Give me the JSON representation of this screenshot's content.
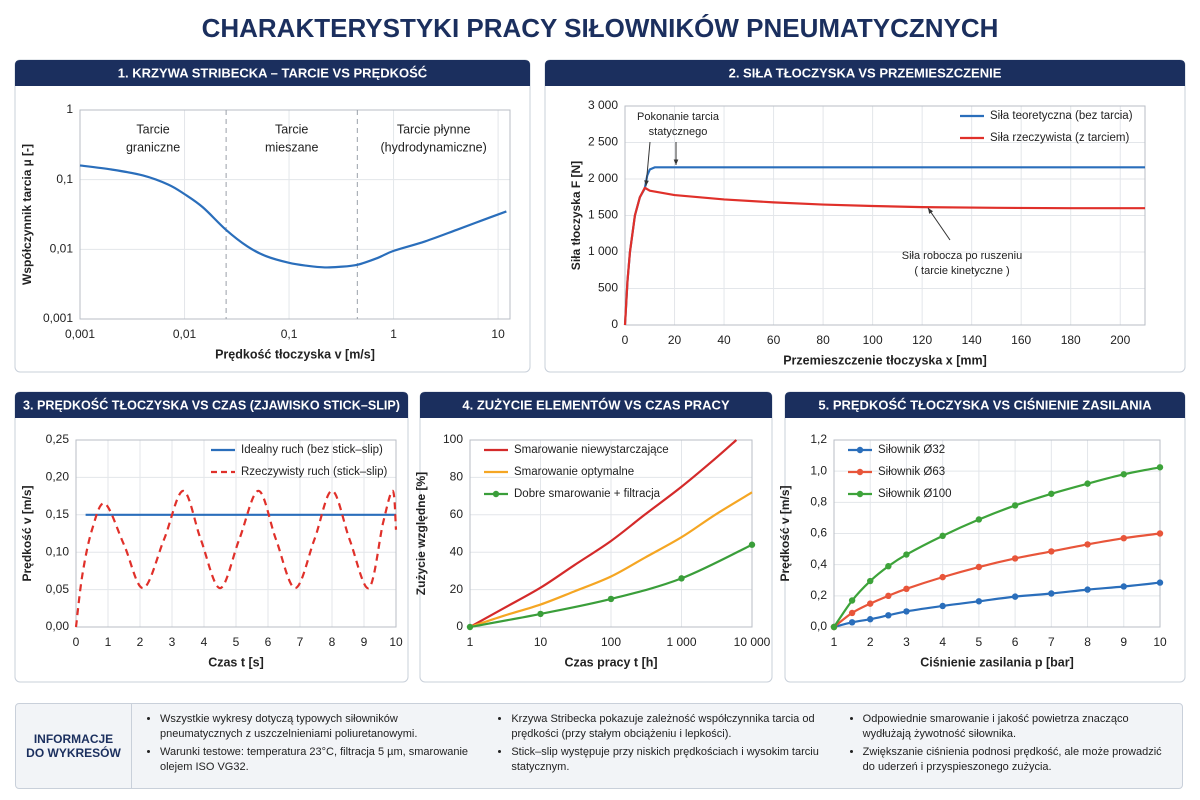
{
  "title": "CHARAKTERYSTYKI PRACY SIŁOWNIKÓW PNEUMATYCZNYCH",
  "chart_data": [
    {
      "type": "line",
      "title": "1. KRZYWA STRIBECKA – TARCIE VS PRĘDKOŚĆ",
      "x_label": "Prędkość tłoczyska v [m/s]",
      "y_label": "Współczynnik tarcia µ [-]",
      "xscale": "log",
      "yscale": "log",
      "grid": true,
      "smooth": true,
      "xlim": [
        0.001,
        13
      ],
      "ylim": [
        0.001,
        1
      ],
      "xticks": [
        {
          "value": 0.001,
          "label": "0,001"
        },
        {
          "value": 0.01,
          "label": "0,01"
        },
        {
          "value": 0.1,
          "label": "0,1"
        },
        1,
        10
      ],
      "yticks": [
        {
          "value": 0.001,
          "label": "0,001"
        },
        {
          "value": 0.01,
          "label": "0,01"
        },
        {
          "value": 0.1,
          "label": "0,1"
        },
        1
      ],
      "dividers": [
        0.025,
        0.45
      ],
      "regions": [
        {
          "lines": [
            "Tarcie",
            "graniczne"
          ]
        },
        {
          "lines": [
            "Tarcie",
            "mieszane"
          ]
        },
        {
          "lines": [
            "Tarcie płynne",
            "(hydrodynamiczne)"
          ]
        }
      ],
      "x": [
        0.001,
        0.002,
        0.004,
        0.007,
        0.01,
        0.015,
        0.025,
        0.04,
        0.06,
        0.1,
        0.15,
        0.22,
        0.3,
        0.45,
        0.7,
        1,
        2,
        4,
        7,
        12
      ],
      "series": [
        {
          "color": "#2a6ebb",
          "values": [
            0.16,
            0.14,
            0.115,
            0.085,
            0.062,
            0.04,
            0.019,
            0.011,
            0.008,
            0.0064,
            0.0058,
            0.0055,
            0.0056,
            0.006,
            0.0075,
            0.0095,
            0.013,
            0.019,
            0.026,
            0.035
          ]
        }
      ]
    },
    {
      "type": "line",
      "title": "2. SIŁA TŁOCZYSKA VS PRZEMIESZCZENIE",
      "x_label": "Przemieszczenie tłoczyska x [mm]",
      "y_label": "Siła tłoczyska F [N]",
      "grid": true,
      "legend": "upper right",
      "xlim": [
        0,
        210
      ],
      "ylim": [
        0,
        3000
      ],
      "xticks": [
        0,
        20,
        40,
        60,
        80,
        100,
        120,
        140,
        160,
        180,
        200
      ],
      "yticks": [
        0,
        500,
        {
          "value": 1000,
          "label": "1 000"
        },
        {
          "value": 1500,
          "label": "1 500"
        },
        {
          "value": 2000,
          "label": "2 000"
        },
        {
          "value": 2500,
          "label": "2 500"
        },
        {
          "value": 3000,
          "label": "3 000"
        }
      ],
      "annotations": [
        {
          "lines": [
            "Pokonanie tarcia",
            "statycznego"
          ]
        },
        {
          "lines": [
            "Siła robocza po ruszeniu",
            "( tarcie kinetyczne )"
          ]
        }
      ],
      "series": [
        {
          "name": "Siła teoretyczna (bez tarcia)",
          "color": "#2a6ebb",
          "x": [
            0,
            1,
            2,
            4,
            6,
            8,
            9,
            10,
            12,
            210
          ],
          "values": [
            0,
            600,
            1000,
            1500,
            1750,
            1870,
            2050,
            2130,
            2160,
            2160
          ]
        },
        {
          "name": "Siła rzeczywista (z tarciem)",
          "color": "#e0302a",
          "x": [
            0,
            1,
            2,
            4,
            6,
            8,
            10,
            20,
            40,
            60,
            80,
            100,
            120,
            150,
            180,
            210
          ],
          "values": [
            0,
            600,
            1000,
            1500,
            1750,
            1880,
            1840,
            1780,
            1720,
            1680,
            1650,
            1630,
            1615,
            1605,
            1600,
            1600
          ]
        }
      ]
    },
    {
      "type": "line",
      "title": "3. PRĘDKOŚĆ TŁOCZYSKA VS CZAS (ZJAWISKO STICK–SLIP)",
      "x_label": "Czas t [s]",
      "y_label": "Prędkość v [m/s]",
      "grid": true,
      "legend": "upper right",
      "smooth": true,
      "xlim": [
        0,
        10
      ],
      "ylim": [
        0,
        0.25
      ],
      "xticks": [
        0,
        1,
        2,
        3,
        4,
        5,
        6,
        7,
        8,
        9,
        10
      ],
      "yticks": [
        {
          "value": 0,
          "label": "0,00"
        },
        {
          "value": 0.05,
          "label": "0,05"
        },
        {
          "value": 0.1,
          "label": "0,10"
        },
        {
          "value": 0.15,
          "label": "0,15"
        },
        {
          "value": 0.2,
          "label": "0,20"
        },
        {
          "value": 0.25,
          "label": "0,25"
        }
      ],
      "series": [
        {
          "name": "Idealny ruch (bez stick–slip)",
          "color": "#2a6ebb",
          "x": [
            0.3,
            10
          ],
          "values": [
            0.15,
            0.15
          ]
        },
        {
          "name": "Rzeczywisty ruch (stick–slip)",
          "color": "#e0302a",
          "dash": true,
          "x": [
            0,
            0.2,
            0.5,
            0.9,
            1.5,
            2.1,
            2.75,
            3.35,
            3.9,
            4.5,
            5.1,
            5.7,
            6.25,
            6.85,
            7.45,
            8.0,
            8.55,
            9.15,
            9.6,
            9.9,
            10
          ],
          "values": [
            0,
            0.07,
            0.13,
            0.165,
            0.11,
            0.052,
            0.117,
            0.182,
            0.117,
            0.052,
            0.117,
            0.182,
            0.117,
            0.052,
            0.117,
            0.182,
            0.117,
            0.052,
            0.14,
            0.182,
            0.13
          ]
        }
      ]
    },
    {
      "type": "line",
      "title": "4. ZUŻYCIE ELEMENTÓW VS CZAS PRACY",
      "x_label": "Czas pracy t [h]",
      "y_label": "Zużycie względne [%]",
      "xscale": "log",
      "grid": true,
      "legend": "upper left",
      "smooth": true,
      "xlim": [
        1,
        10000
      ],
      "ylim": [
        0,
        100
      ],
      "xticks": [
        1,
        10,
        100,
        {
          "value": 1000,
          "label": "1 000"
        },
        {
          "value": 10000,
          "label": "10 000"
        }
      ],
      "yticks": [
        0,
        20,
        40,
        60,
        80,
        100
      ],
      "series": [
        {
          "name": "Smarowanie niewystarczające",
          "color": "#d42a2a",
          "x": [
            1,
            3,
            10,
            30,
            100,
            300,
            1000,
            3000,
            6000
          ],
          "values": [
            0,
            10,
            21,
            33,
            46,
            60,
            75,
            90,
            100
          ]
        },
        {
          "name": "Smarowanie optymalne",
          "color": "#f5a623",
          "x": [
            1,
            3,
            10,
            30,
            100,
            300,
            1000,
            3000,
            10000
          ],
          "values": [
            0,
            6,
            12,
            19,
            27,
            37,
            48,
            60,
            72
          ]
        },
        {
          "name": "Dobre smarowanie + filtracja",
          "color": "#3a9e3a",
          "markers": true,
          "x": [
            1,
            10,
            100,
            1000,
            10000
          ],
          "values": [
            0,
            7,
            15,
            26,
            44
          ]
        }
      ]
    },
    {
      "type": "line",
      "title": "5. PRĘDKOŚĆ TŁOCZYSKA VS CIŚNIENIE ZASILANIA",
      "x_label": "Ciśnienie zasilania p [bar]",
      "y_label": "Prędkość v [m/s]",
      "grid": true,
      "legend": "upper left",
      "smooth": true,
      "xlim": [
        1,
        10
      ],
      "ylim": [
        0,
        1.2
      ],
      "xticks": [
        1,
        2,
        3,
        4,
        5,
        6,
        7,
        8,
        9,
        10
      ],
      "yticks": [
        {
          "value": 0,
          "label": "0,0"
        },
        {
          "value": 0.2,
          "label": "0,2"
        },
        {
          "value": 0.4,
          "label": "0,4"
        },
        {
          "value": 0.6,
          "label": "0,6"
        },
        {
          "value": 0.8,
          "label": "0,8"
        },
        {
          "value": 1,
          "label": "1,0"
        },
        {
          "value": 1.2,
          "label": "1,2"
        }
      ],
      "x": [
        1,
        1.5,
        2,
        2.5,
        3,
        4,
        5,
        6,
        7,
        8,
        9,
        10
      ],
      "series": [
        {
          "name": "Siłownik Ø32",
          "color": "#2a6ebb",
          "markers": true,
          "values": [
            0,
            0.03,
            0.05,
            0.075,
            0.1,
            0.135,
            0.165,
            0.195,
            0.215,
            0.24,
            0.26,
            0.285
          ]
        },
        {
          "name": "Siłownik Ø63",
          "color": "#e8553a",
          "markers": true,
          "values": [
            0,
            0.09,
            0.15,
            0.2,
            0.245,
            0.32,
            0.385,
            0.44,
            0.485,
            0.53,
            0.57,
            0.6
          ]
        },
        {
          "name": "Siłownik Ø100",
          "color": "#3da33a",
          "markers": true,
          "values": [
            0,
            0.17,
            0.295,
            0.39,
            0.465,
            0.585,
            0.69,
            0.78,
            0.855,
            0.92,
            0.98,
            1.025
          ]
        }
      ]
    }
  ],
  "info": {
    "label": [
      "INFORMACJE",
      "DO WYKRESÓW"
    ],
    "columns": [
      [
        "Wszystkie wykresy dotyczą typowych siłowników pneumatycznych z uszczelnieniami poliuretanowymi.",
        "Warunki testowe: temperatura 23°C, filtracja 5 µm, smarowanie olejem ISO VG32."
      ],
      [
        "Krzywa Stribecka pokazuje zależność współczynnika tarcia od prędkości (przy stałym obciążeniu i lepkości).",
        "Stick–slip występuje przy niskich prędkościach i wysokim tarciu statycznym."
      ],
      [
        "Odpowiednie smarowanie i jakość powietrza znacząco wydłużają żywotność siłownika.",
        "Zwiększanie ciśnienia podnosi prędkość, ale może prowadzić do uderzeń i przyspieszonego zużycia."
      ]
    ]
  }
}
